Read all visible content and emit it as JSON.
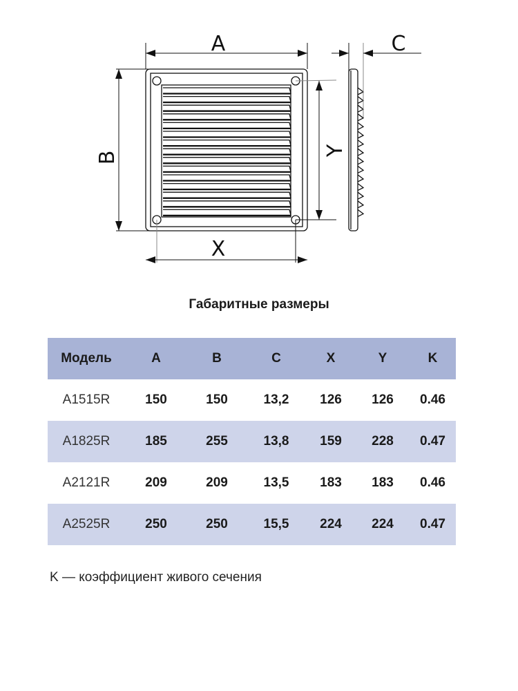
{
  "drawing": {
    "labels": {
      "a": "A",
      "b": "B",
      "c": "C",
      "x": "X",
      "y": "Y"
    }
  },
  "title": "Габаритные размеры",
  "table": {
    "headers": [
      "Модель",
      "A",
      "B",
      "C",
      "X",
      "Y",
      "K"
    ],
    "rows": [
      [
        "A1515R",
        "150",
        "150",
        "13,2",
        "126",
        "126",
        "0.46"
      ],
      [
        "A1825R",
        "185",
        "255",
        "13,8",
        "159",
        "228",
        "0.47"
      ],
      [
        "A2121R",
        "209",
        "209",
        "13,5",
        "183",
        "183",
        "0.46"
      ],
      [
        "A2525R",
        "250",
        "250",
        "15,5",
        "224",
        "224",
        "0.47"
      ]
    ],
    "header_color": "#a8b3d6",
    "alt_row_color": "#ced4ea"
  },
  "footnote": "K — коэффициент живого сечения"
}
